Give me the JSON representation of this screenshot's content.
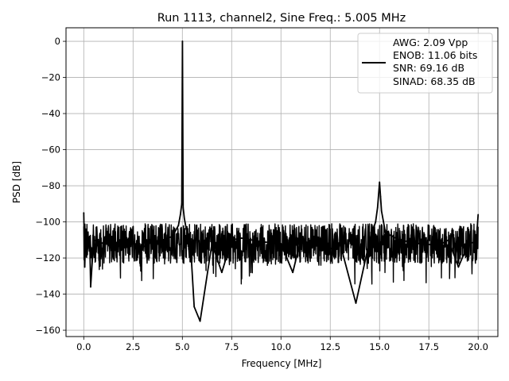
{
  "chart_data": {
    "type": "line",
    "title": "Run 1113, channel2, Sine Freq.: 5.005 MHz",
    "xlabel": "Frequency [MHz]",
    "ylabel": "PSD [dB]",
    "xlim": [
      -0.9,
      21.0
    ],
    "ylim": [
      -163.5,
      7.5
    ],
    "xticks": [
      0.0,
      2.5,
      5.0,
      7.5,
      10.0,
      12.5,
      15.0,
      17.5,
      20.0
    ],
    "xtick_labels": [
      "0.0",
      "2.5",
      "5.0",
      "7.5",
      "10.0",
      "12.5",
      "15.0",
      "17.5",
      "20.0"
    ],
    "yticks": [
      0,
      -20,
      -40,
      -60,
      -80,
      -100,
      -120,
      -140,
      -160
    ],
    "ytick_labels": [
      "0",
      "−20",
      "−40",
      "−60",
      "−80",
      "−100",
      "−120",
      "−140",
      "−160"
    ],
    "grid": true,
    "legend_position": "top-right",
    "legend_lines": [
      "AWG: 2.09 Vpp",
      "ENOB: 11.06 bits",
      "SNR: 69.16 dB",
      "SINAD: 68.35 dB"
    ],
    "line_color": "#000000",
    "noise_floor_db": -112,
    "series": [
      {
        "x": [
          0.0,
          0.05,
          0.1,
          0.2,
          0.3,
          0.35,
          0.5,
          1.0,
          1.5,
          2.0,
          2.5,
          3.0,
          3.5,
          4.0,
          4.5,
          4.8,
          4.9,
          4.97,
          5.005,
          5.04,
          5.1,
          5.2,
          5.4,
          5.6,
          5.9,
          6.5,
          7.0,
          7.5,
          8.0,
          9.0,
          10.0,
          10.6,
          11.0,
          11.5,
          12.0,
          12.5,
          13.0,
          13.8,
          14.5,
          14.8,
          14.9,
          15.0,
          15.05,
          15.1,
          15.3,
          16.0,
          17.0,
          18.0,
          18.5,
          19.0,
          19.5,
          19.9,
          20.0
        ],
        "y": [
          -95,
          -125,
          -104,
          -115,
          -108,
          -136,
          -110,
          -112,
          -113,
          -110,
          -112,
          -114,
          -111,
          -110,
          -108,
          -102,
          -96,
          -90,
          0,
          -92,
          -98,
          -104,
          -110,
          -147,
          -155,
          -112,
          -128,
          -110,
          -109,
          -111,
          -112,
          -128,
          -110,
          -112,
          -113,
          -115,
          -112,
          -145,
          -110,
          -100,
          -92,
          -78,
          -86,
          -94,
          -106,
          -110,
          -112,
          -113,
          -110,
          -125,
          -112,
          -111,
          -96
        ]
      }
    ]
  }
}
